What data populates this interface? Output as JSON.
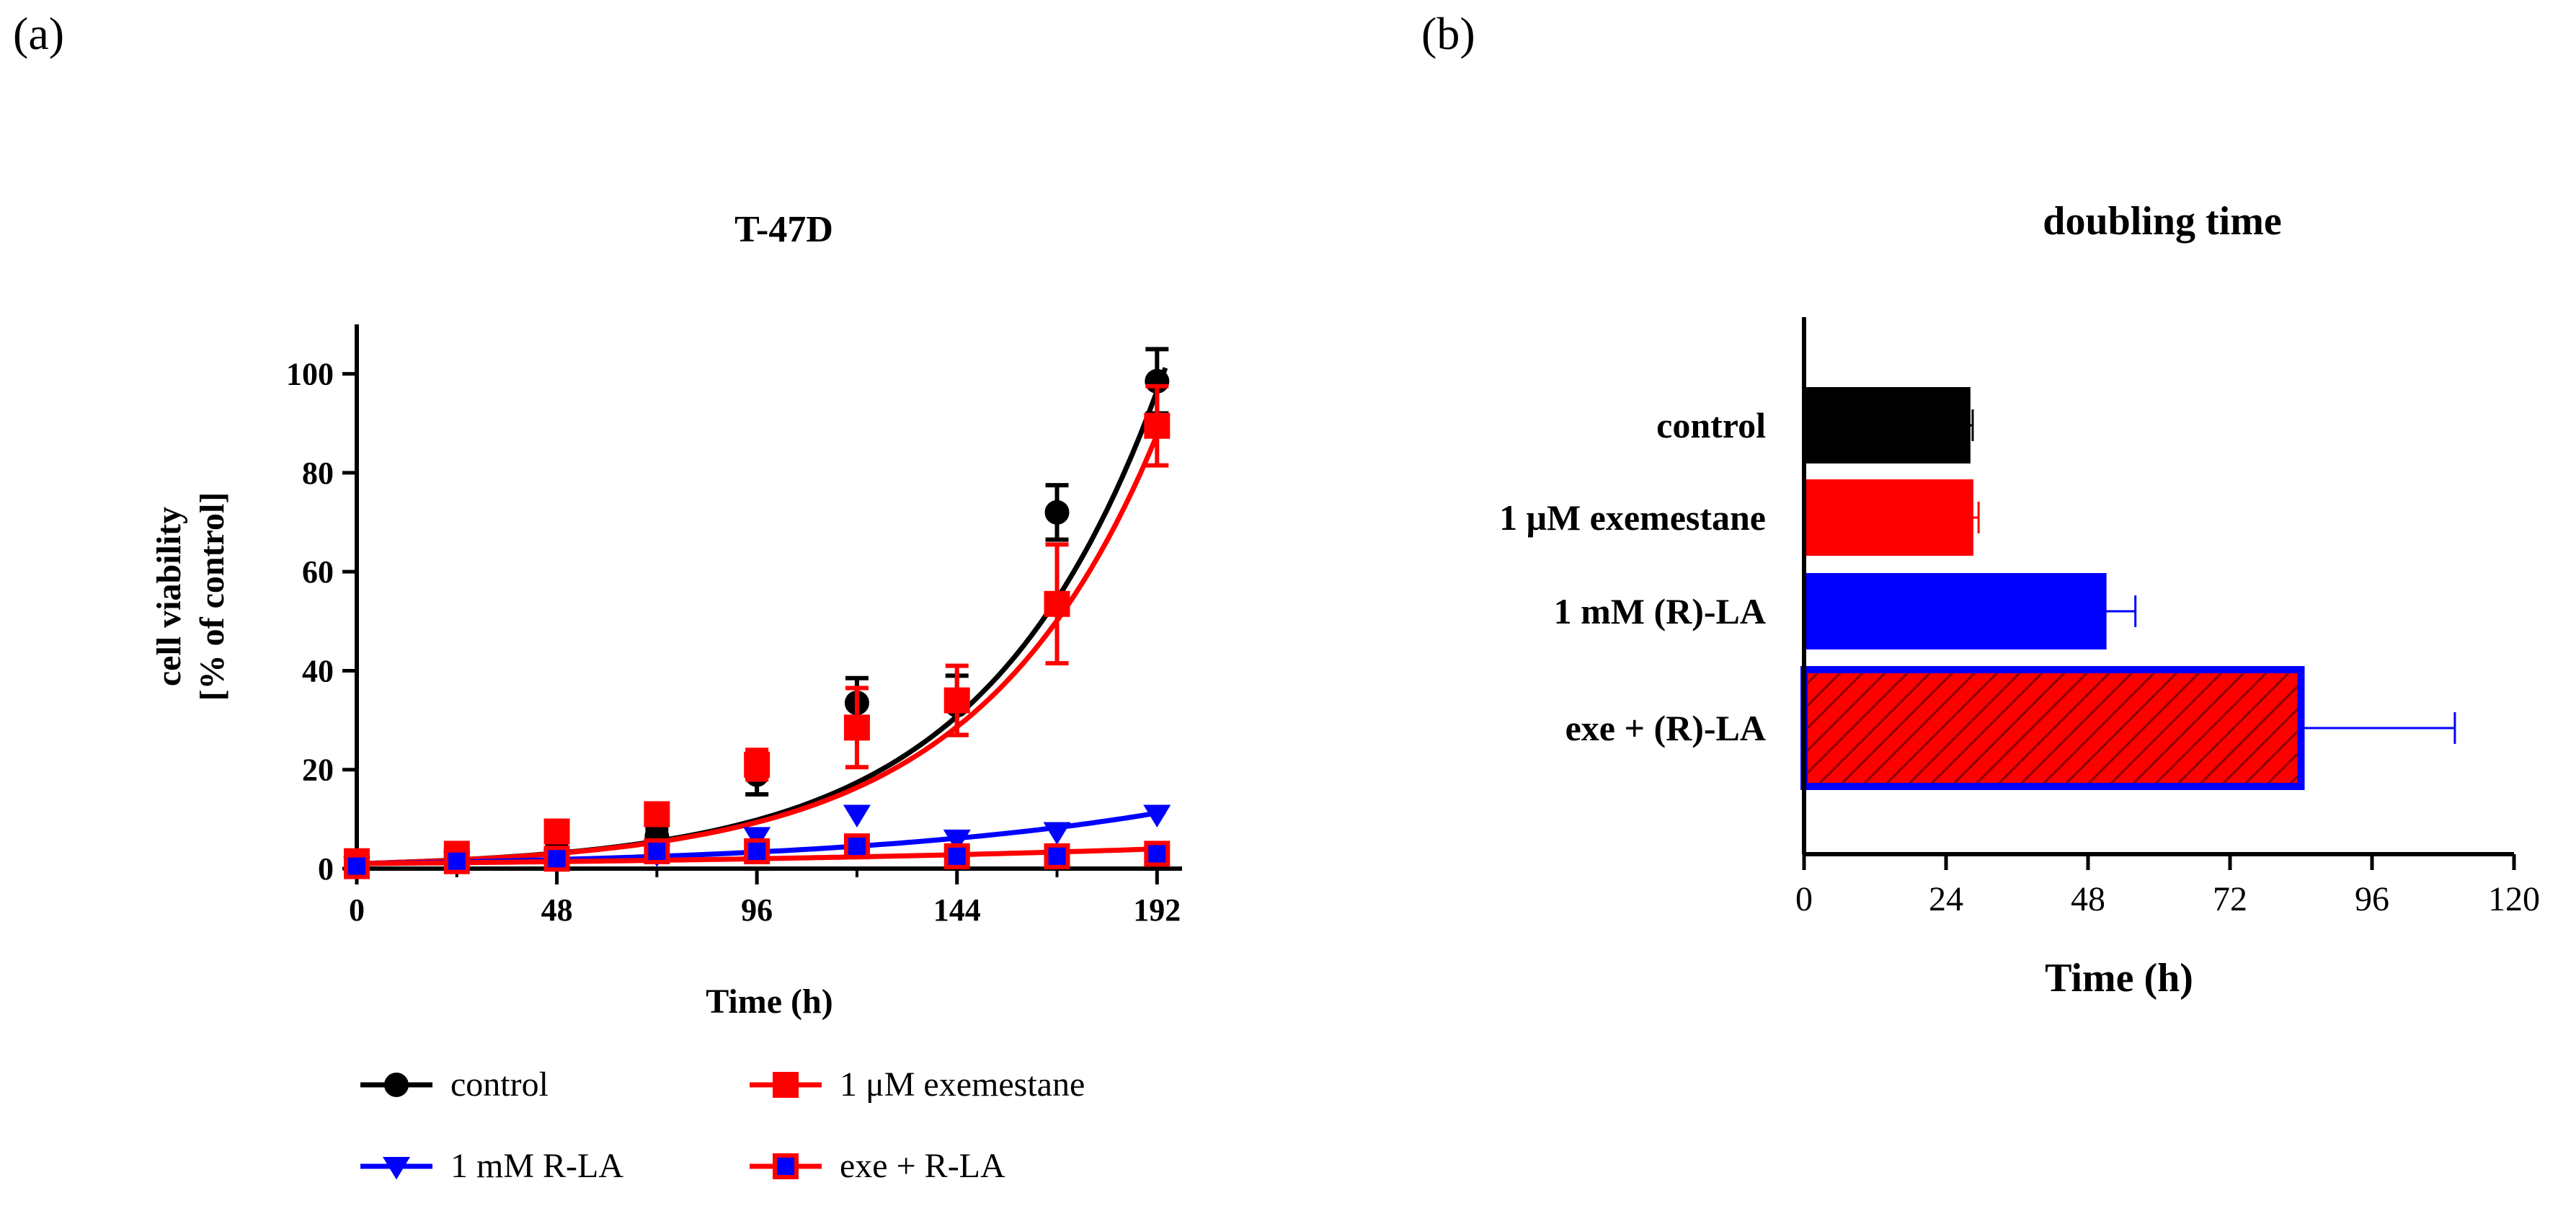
{
  "panel_labels": [
    "(a)",
    "(b)"
  ],
  "chart_data": [
    {
      "type": "line",
      "title": "T-47D",
      "xlabel": "Time (h)",
      "ylabel_lines": [
        "cell viability",
        "[% of control]"
      ],
      "xlim": [
        0,
        198
      ],
      "ylim": [
        0,
        110
      ],
      "xticks": [
        0,
        48,
        96,
        144,
        192
      ],
      "yticks": [
        0,
        20,
        40,
        60,
        80,
        100
      ],
      "legend_position": "bottom",
      "series": [
        {
          "name": "control",
          "color": "#000000",
          "marker": "circle",
          "marker_fill": "#000000",
          "x": [
            0,
            24,
            48,
            72,
            96,
            120,
            144,
            168,
            192
          ],
          "y": [
            1,
            1.5,
            3.5,
            6.5,
            19,
            33.5,
            33,
            72,
            98.5
          ],
          "err": [
            0.5,
            0.5,
            1,
            1.5,
            4,
            5,
            6,
            5.5,
            6.5
          ],
          "fit": {
            "a": 1.0,
            "b": 0.0238
          }
        },
        {
          "name": "1 μM exemestane",
          "color": "#ff0000",
          "marker": "square",
          "marker_fill": "#ff0000",
          "x": [
            0,
            24,
            48,
            72,
            96,
            120,
            144,
            168,
            192
          ],
          "y": [
            1.5,
            3,
            7.5,
            11,
            21,
            28.5,
            34,
            53.5,
            89.5
          ],
          "err": [
            0.5,
            1,
            1,
            1.5,
            3,
            8,
            7,
            12,
            8
          ],
          "fit": {
            "a": 1.0,
            "b": 0.0233
          }
        },
        {
          "name": "1 mM R-LA",
          "color": "#0000ff",
          "marker": "triangle-down",
          "marker_fill": "#0000ff",
          "x": [
            0,
            24,
            48,
            72,
            96,
            120,
            144,
            168,
            192
          ],
          "y": [
            0.5,
            1.5,
            2,
            3,
            6.5,
            11,
            6,
            7.5,
            11
          ],
          "err": [
            0,
            0,
            0,
            0,
            0,
            0,
            0,
            0,
            0
          ],
          "fit": {
            "a": 1.0,
            "b": 0.0126
          }
        },
        {
          "name": "exe + R-LA",
          "color": "#ff0000",
          "marker": "square",
          "marker_fill": "#0000ff",
          "x": [
            0,
            24,
            48,
            72,
            96,
            120,
            144,
            168,
            192
          ],
          "y": [
            0.5,
            1.5,
            2,
            3.5,
            3.5,
            4.5,
            2.5,
            2.5,
            3
          ],
          "err": [
            0,
            0,
            0,
            0,
            0,
            0,
            0,
            0,
            0
          ],
          "fit": {
            "a": 1.0,
            "b": 0.0072
          }
        }
      ]
    },
    {
      "type": "bar",
      "orientation": "horizontal",
      "title": "doubling time",
      "xlabel": "Time (h)",
      "xlim": [
        0,
        120
      ],
      "xticks": [
        0,
        24,
        48,
        72,
        96,
        120
      ],
      "categories": [
        "control",
        "1 μM exemestane",
        "1 mM (R)-LA",
        "exe + (R)-LA"
      ],
      "values": [
        28,
        28.5,
        51,
        84
      ],
      "errors": [
        0.5,
        1,
        5,
        26
      ],
      "colors": [
        {
          "fill": "#000000",
          "stroke": "#000000",
          "err": "#000000",
          "hatch": false
        },
        {
          "fill": "#ff0000",
          "stroke": "#ff0000",
          "err": "#ff0000",
          "hatch": false
        },
        {
          "fill": "#0000ff",
          "stroke": "#0000ff",
          "err": "#0000ff",
          "hatch": false
        },
        {
          "fill": "#ff0000",
          "stroke": "#0000ff",
          "err": "#0000ff",
          "hatch": true,
          "hatch_color": "#8b0000"
        }
      ]
    }
  ]
}
